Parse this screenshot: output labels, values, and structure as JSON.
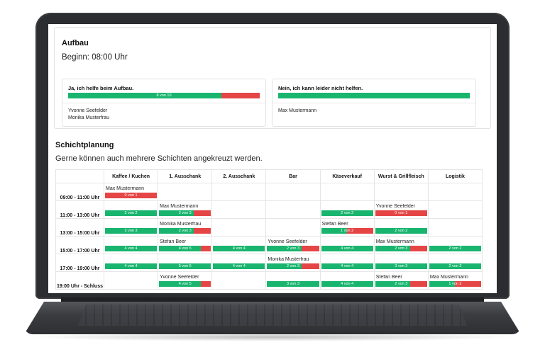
{
  "aufbau": {
    "title": "Aufbau",
    "start": "Beginn: 08:00 Uhr",
    "yes": {
      "label": "Ja, ich helfe beim Aufbau.",
      "progress_text": "8 von 10",
      "progress_fraction": 0.8,
      "names": [
        "Yvonne Seefelder",
        "Monika Musterfrau"
      ]
    },
    "no": {
      "label": "Nein, ich kann leider nicht helfen.",
      "progress_text": "",
      "progress_fraction": 1.0,
      "names": [
        "Max Mustermann"
      ]
    }
  },
  "schicht": {
    "title": "Schichtplanung",
    "subtitle": "Gerne können auch mehrere Schichten angekreuzt werden.",
    "columns": [
      "",
      "Kaffee / Kuchen",
      "1. Ausschank",
      "2. Ausschank",
      "Bar",
      "Käseverkauf",
      "Wurst & Grillfleisch",
      "Logistik"
    ],
    "rows": [
      {
        "time": "09:00 - 11:00 Uhr",
        "cells": [
          {
            "names": [
              "Max Mustermann"
            ],
            "bar": "0 von 1",
            "fill": 0.0
          },
          null,
          null,
          null,
          null,
          null,
          null
        ]
      },
      {
        "time": "11:00 - 13:00 Uhr",
        "cells": [
          {
            "names": [],
            "bar": "2 von 2",
            "fill": 1.0
          },
          {
            "names": [
              "Max Mustermann"
            ],
            "bar": "2 von 3",
            "fill": 0.67
          },
          null,
          null,
          {
            "names": [],
            "bar": "2 von 2",
            "fill": 1.0
          },
          {
            "names": [
              "Yvonne Seefelder"
            ],
            "bar": "0 von 1",
            "fill": 0.0
          },
          null
        ]
      },
      {
        "time": "13:00 - 15:00 Uhr",
        "cells": [
          {
            "names": [],
            "bar": "3 von 3",
            "fill": 1.0
          },
          {
            "names": [
              "Monika Musterfrau"
            ],
            "bar": "2 von 3",
            "fill": 0.67
          },
          null,
          null,
          {
            "names": [
              "Stefan Beer"
            ],
            "bar": "1 von 2",
            "fill": 0.5
          },
          {
            "names": [],
            "bar": "2 von 2",
            "fill": 1.0
          },
          null
        ]
      },
      {
        "time": "15:00 - 17:00 Uhr",
        "cells": [
          {
            "names": [],
            "bar": "4 von 4",
            "fill": 1.0
          },
          {
            "names": [
              "Stefan Beer"
            ],
            "bar": "4 von 5",
            "fill": 0.8
          },
          {
            "names": [],
            "bar": "4 von 4",
            "fill": 1.0
          },
          {
            "names": [
              "Yvonne Seefelder"
            ],
            "bar": "2 von 3",
            "fill": 0.67
          },
          {
            "names": [],
            "bar": "4 von 4",
            "fill": 1.0
          },
          {
            "names": [
              "Max Mustermann"
            ],
            "bar": "2 von 3",
            "fill": 0.67
          },
          {
            "names": [],
            "bar": "2 von 2",
            "fill": 1.0
          }
        ]
      },
      {
        "time": "17:00 - 19:00 Uhr",
        "cells": [
          {
            "names": [],
            "bar": "4 von 4",
            "fill": 1.0
          },
          {
            "names": [],
            "bar": "5 von 5",
            "fill": 1.0
          },
          {
            "names": [],
            "bar": "4 von 4",
            "fill": 1.0
          },
          {
            "names": [
              "Monika Musterfrau"
            ],
            "bar": "2 von 3",
            "fill": 0.67
          },
          {
            "names": [],
            "bar": "4 von 4",
            "fill": 1.0
          },
          {
            "names": [],
            "bar": "3 von 3",
            "fill": 1.0
          },
          {
            "names": [],
            "bar": "2 von 2",
            "fill": 1.0
          }
        ]
      },
      {
        "time": "19:00 Uhr - Schluss",
        "cells": [
          null,
          {
            "names": [
              "Yvonne Seefelder"
            ],
            "bar": "4 von 5",
            "fill": 0.8
          },
          null,
          {
            "names": [],
            "bar": "3 von 3",
            "fill": 1.0
          },
          {
            "names": [],
            "bar": "4 von 4",
            "fill": 1.0
          },
          {
            "names": [
              "Stefan Beer"
            ],
            "bar": "2 von 3",
            "fill": 0.67
          },
          {
            "names": [
              "Max Mustermann"
            ],
            "bar": "1 von 2",
            "fill": 0.5
          }
        ]
      }
    ]
  },
  "colors": {
    "filled": "#19b56f",
    "missing": "#e54545",
    "laptop_frame": "#2c2d30"
  }
}
